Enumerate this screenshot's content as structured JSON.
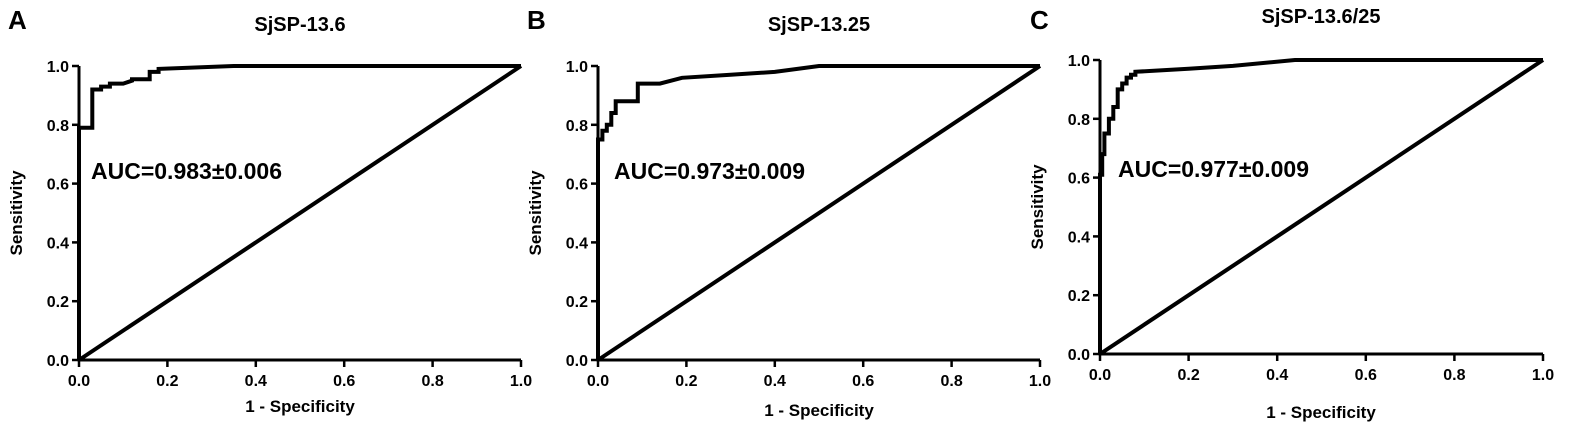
{
  "chart_data": [
    {
      "type": "line",
      "panel": "A",
      "title": "SjSP-13.6",
      "xlabel": "1 - Specificity",
      "ylabel": "Sensitivity",
      "xlim": [
        0,
        1
      ],
      "ylim": [
        0,
        1
      ],
      "xticks": [
        "0.0",
        "0.2",
        "0.4",
        "0.6",
        "0.8",
        "1.0"
      ],
      "yticks": [
        "0.0",
        "0.2",
        "0.4",
        "0.6",
        "0.8",
        "1.0"
      ],
      "annotation": "AUC=0.983±0.006",
      "grid": false,
      "series": [
        {
          "x": [
            0,
            0,
            0.03,
            0.03,
            0.03,
            0.05,
            0.05,
            0.07,
            0.07,
            0.1,
            0.12,
            0.12,
            0.16,
            0.16,
            0.18,
            0.18,
            0.35,
            1.0
          ],
          "y": [
            0,
            0.79,
            0.79,
            0.85,
            0.92,
            0.92,
            0.93,
            0.93,
            0.94,
            0.94,
            0.95,
            0.955,
            0.955,
            0.98,
            0.98,
            0.99,
            1.0,
            1.0
          ]
        },
        {
          "x": [
            0,
            1
          ],
          "y": [
            0,
            1
          ]
        }
      ]
    },
    {
      "type": "line",
      "panel": "B",
      "title": "SjSP-13.25",
      "xlabel": "1 - Specificity",
      "ylabel": "Sensitivity",
      "xlim": [
        0,
        1
      ],
      "ylim": [
        0,
        1
      ],
      "xticks": [
        "0.0",
        "0.2",
        "0.4",
        "0.6",
        "0.8",
        "1.0"
      ],
      "yticks": [
        "0.0",
        "0.2",
        "0.4",
        "0.6",
        "0.8",
        "1.0"
      ],
      "annotation": "AUC=0.973±0.009",
      "grid": false,
      "series": [
        {
          "x": [
            0,
            0,
            0.01,
            0.01,
            0.02,
            0.02,
            0.03,
            0.03,
            0.04,
            0.04,
            0.09,
            0.09,
            0.14,
            0.19,
            0.3,
            0.4,
            0.5,
            1.0
          ],
          "y": [
            0,
            0.75,
            0.75,
            0.78,
            0.78,
            0.8,
            0.8,
            0.84,
            0.84,
            0.88,
            0.88,
            0.94,
            0.94,
            0.96,
            0.97,
            0.98,
            1.0,
            1.0
          ]
        },
        {
          "x": [
            0,
            1
          ],
          "y": [
            0,
            1
          ]
        }
      ]
    },
    {
      "type": "line",
      "panel": "C",
      "title": "SjSP-13.6/25",
      "xlabel": "1 - Specificity",
      "ylabel": "Sensitivity",
      "xlim": [
        0,
        1
      ],
      "ylim": [
        0,
        1
      ],
      "xticks": [
        "0.0",
        "0.2",
        "0.4",
        "0.6",
        "0.8",
        "1.0"
      ],
      "yticks": [
        "0.0",
        "0.2",
        "0.4",
        "0.6",
        "0.8",
        "1.0"
      ],
      "annotation": "AUC=0.977±0.009",
      "grid": false,
      "series": [
        {
          "x": [
            0,
            0,
            0.005,
            0.005,
            0.01,
            0.01,
            0.02,
            0.02,
            0.03,
            0.03,
            0.04,
            0.04,
            0.05,
            0.05,
            0.06,
            0.06,
            0.07,
            0.07,
            0.08,
            0.08,
            0.2,
            0.3,
            0.44,
            1.0
          ],
          "y": [
            0,
            0.61,
            0.61,
            0.68,
            0.68,
            0.75,
            0.75,
            0.8,
            0.8,
            0.84,
            0.84,
            0.9,
            0.9,
            0.92,
            0.92,
            0.94,
            0.94,
            0.95,
            0.95,
            0.96,
            0.97,
            0.98,
            1.0,
            1.0
          ]
        },
        {
          "x": [
            0,
            1
          ],
          "y": [
            0,
            1
          ]
        }
      ]
    }
  ]
}
